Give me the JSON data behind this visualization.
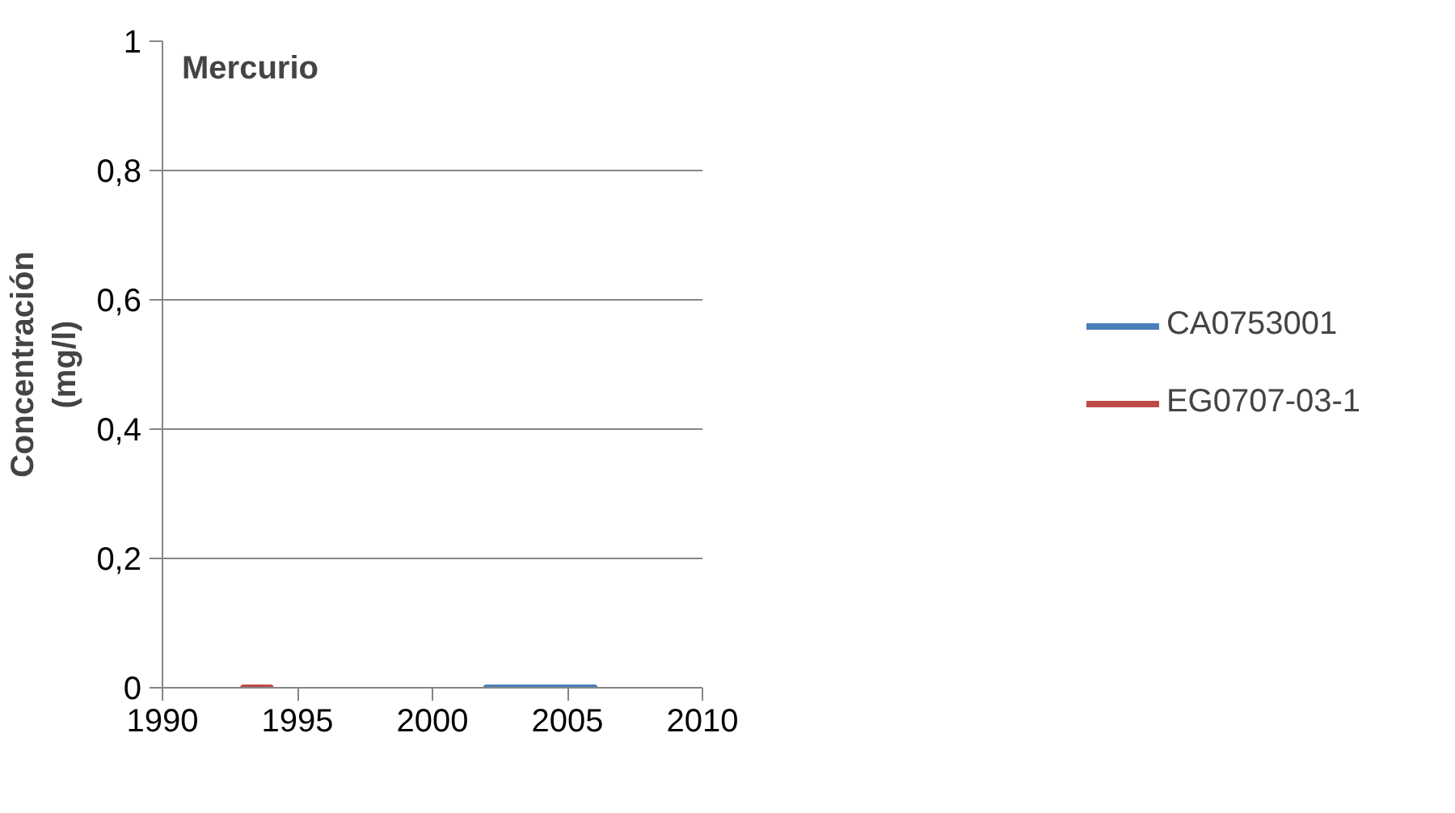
{
  "chart_data": {
    "type": "line",
    "title": "Mercurio",
    "ylabel": "Concentración\n(mg/l)",
    "series": [
      {
        "name": "CA0753001",
        "color": "#4a7ebb",
        "x": [
          2002,
          2003,
          2004,
          2005,
          2006
        ],
        "values": [
          0,
          0,
          0,
          0,
          0
        ]
      },
      {
        "name": "EG0707-03-1",
        "color": "#be4b48",
        "x": [
          1993,
          1994
        ],
        "values": [
          0,
          0
        ]
      }
    ],
    "xlim": [
      1990,
      2010
    ],
    "xticks": [
      1990,
      1995,
      2000,
      2005,
      2010
    ],
    "ylim": [
      0,
      1
    ],
    "yticks": [
      {
        "value": 0,
        "label": "0"
      },
      {
        "value": 0.2,
        "label": "0,2"
      },
      {
        "value": 0.4,
        "label": "0,4"
      },
      {
        "value": 0.6,
        "label": "0,6"
      },
      {
        "value": 0.8,
        "label": "0,8"
      },
      {
        "value": 1,
        "label": "1"
      }
    ],
    "grid": "y",
    "legend": "right",
    "marker": "none",
    "line_style": "solid"
  }
}
